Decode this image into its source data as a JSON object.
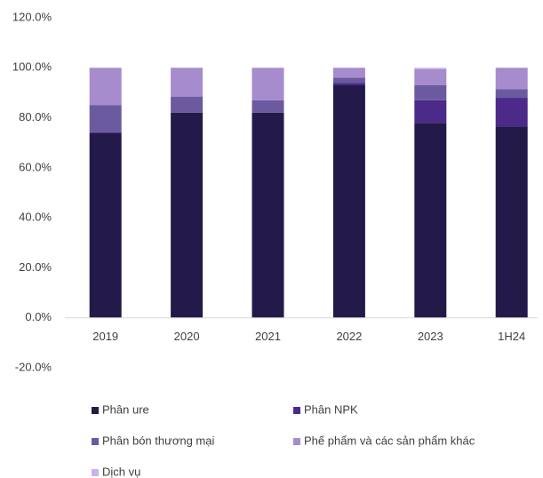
{
  "chart_data": {
    "type": "bar",
    "stacked": true,
    "categories": [
      "2019",
      "2020",
      "2021",
      "2022",
      "2023",
      "1H24"
    ],
    "series": [
      {
        "name": "Phân ure",
        "color": "#241a4a",
        "values": [
          74,
          82,
          82,
          93,
          78,
          76.5
        ]
      },
      {
        "name": "Phân NPK",
        "color": "#4b2a8a",
        "values": [
          0,
          0,
          0,
          1,
          9,
          11.5
        ]
      },
      {
        "name": "Phân bón thương mại",
        "color": "#6c5aa0",
        "values": [
          11,
          6.5,
          5,
          2,
          6,
          3.5
        ]
      },
      {
        "name": "Phế phẩm và các sản phẩm khác",
        "color": "#a68ccc",
        "values": [
          15,
          11.5,
          13,
          4,
          6.5,
          8.5
        ]
      },
      {
        "name": "Dịch vụ",
        "color": "#c9b3ea",
        "values": [
          0,
          0,
          0,
          0,
          0.5,
          0
        ]
      }
    ],
    "ylim": [
      -20,
      120
    ],
    "yticks": [
      {
        "value": -20,
        "label": "-20.0%"
      },
      {
        "value": 0,
        "label": "0.0%"
      },
      {
        "value": 20,
        "label": "20.0%"
      },
      {
        "value": 40,
        "label": "40.0%"
      },
      {
        "value": 60,
        "label": "60.0%"
      },
      {
        "value": 80,
        "label": "80.0%"
      },
      {
        "value": 100,
        "label": "100.0%"
      },
      {
        "value": 120,
        "label": "120.0%"
      }
    ],
    "grid": false
  }
}
